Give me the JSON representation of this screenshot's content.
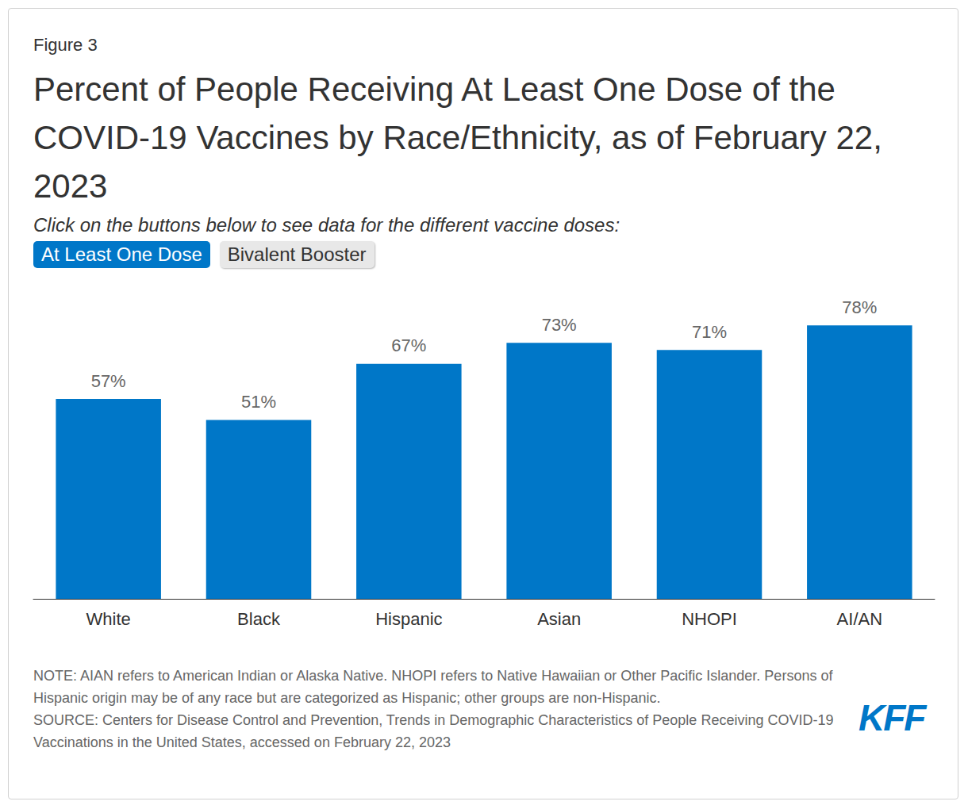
{
  "chart_data": {
    "type": "bar",
    "title": "Percent of People Receiving At Least One Dose of the COVID-19 Vaccines by Race/Ethnicity, as of February 22, 2023",
    "categories": [
      "White",
      "Black",
      "Hispanic",
      "Asian",
      "NHOPI",
      "AI/AN"
    ],
    "values": [
      57,
      51,
      67,
      73,
      71,
      78
    ],
    "value_labels": [
      "57%",
      "51%",
      "67%",
      "73%",
      "71%",
      "78%"
    ],
    "color": "#0077c8",
    "ylim": [
      0,
      100
    ],
    "grid": false,
    "data_labels": true,
    "tick_labels": "x"
  },
  "page": {
    "figure_label": "Figure 3",
    "subtitle": "Click on the buttons below to see data for the different vaccine doses:",
    "buttons": [
      "At Least One Dose",
      "Bivalent Booster"
    ],
    "note": "NOTE: AIAN refers to American Indian or Alaska Native. NHOPI refers to Native Hawaiian or Other Pacific Islander. Persons of Hispanic origin may be of any race but are categorized as Hispanic; other groups are non-Hispanic.",
    "source": "SOURCE: Centers for Disease Control and Prevention, Trends in Demographic Characteristics of People Receiving COVID-19 Vaccinations in the United States, accessed on February 22, 2023",
    "logo": "KFF"
  }
}
